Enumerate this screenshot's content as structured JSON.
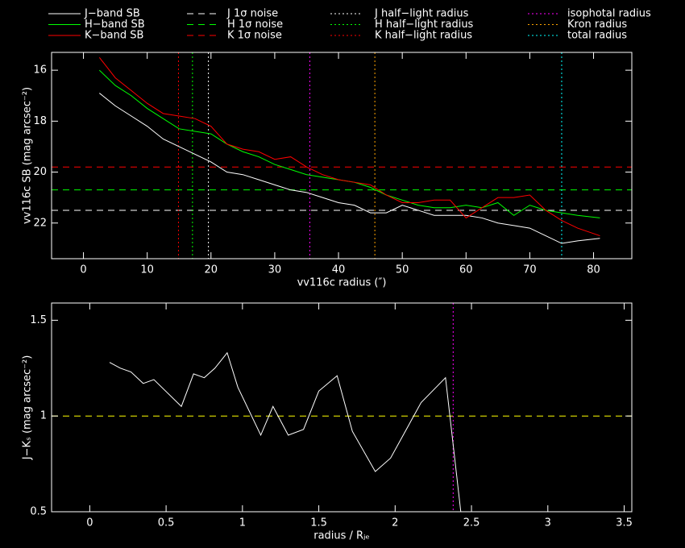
{
  "chart_data": [
    {
      "type": "line",
      "x_label": "vv116c radius (″)",
      "y_label": "vv116c SB (mag arcsec⁻²)",
      "xlim": [
        -5,
        86
      ],
      "ylim": [
        23.4,
        15.3
      ],
      "xticks": [
        0,
        10,
        20,
        30,
        40,
        50,
        60,
        70,
        80
      ],
      "yticks": [
        16,
        18,
        20,
        22
      ],
      "x": [
        2.5,
        5,
        7.5,
        10,
        12.5,
        15,
        17.5,
        20,
        22.5,
        25,
        27.5,
        30,
        32.5,
        35,
        37.5,
        40,
        42.5,
        45,
        47.5,
        50,
        52.5,
        55,
        57.5,
        60,
        62.5,
        65,
        67.5,
        70,
        72.5,
        75,
        77.5,
        81
      ],
      "series": [
        {
          "name": "J−band SB",
          "color": "#ffffff",
          "style": "solid",
          "values": [
            16.9,
            17.4,
            17.8,
            18.2,
            18.7,
            19.0,
            19.3,
            19.6,
            20.0,
            20.1,
            20.3,
            20.5,
            20.7,
            20.8,
            21.0,
            21.2,
            21.3,
            21.6,
            21.6,
            21.3,
            21.5,
            21.7,
            21.7,
            21.7,
            21.8,
            22.0,
            22.1,
            22.2,
            22.5,
            22.8,
            22.7,
            22.6
          ]
        },
        {
          "name": "H−band SB",
          "color": "#00ff00",
          "style": "solid",
          "values": [
            16.0,
            16.6,
            17.0,
            17.5,
            17.9,
            18.3,
            18.4,
            18.5,
            18.9,
            19.2,
            19.4,
            19.7,
            19.9,
            20.1,
            20.2,
            20.3,
            20.4,
            20.6,
            20.9,
            21.1,
            21.3,
            21.4,
            21.4,
            21.3,
            21.4,
            21.2,
            21.7,
            21.3,
            21.5,
            21.6,
            21.7,
            21.8
          ]
        },
        {
          "name": "K−band SB",
          "color": "#ff0000",
          "style": "solid",
          "values": [
            15.5,
            16.3,
            16.8,
            17.3,
            17.7,
            17.8,
            17.9,
            18.2,
            18.9,
            19.1,
            19.2,
            19.5,
            19.4,
            19.8,
            20.1,
            20.3,
            20.4,
            20.5,
            20.9,
            21.2,
            21.2,
            21.1,
            21.1,
            21.8,
            21.4,
            21.0,
            21.0,
            20.9,
            21.5,
            21.9,
            22.2,
            22.5
          ]
        }
      ],
      "reference_lines": [
        {
          "name": "J 1σ noise",
          "color": "#ffffff",
          "style": "dashed",
          "orientation": "h",
          "value": 21.5
        },
        {
          "name": "H 1σ noise",
          "color": "#00ff00",
          "style": "dashed",
          "orientation": "h",
          "value": 20.7
        },
        {
          "name": "K 1σ noise",
          "color": "#ff0000",
          "style": "dashed",
          "orientation": "h",
          "value": 19.8
        },
        {
          "name": "J half−light radius",
          "color": "#ffffff",
          "style": "dotted",
          "orientation": "v",
          "value": 19.6
        },
        {
          "name": "H half−light radius",
          "color": "#00ff00",
          "style": "dotted",
          "orientation": "v",
          "value": 17.1
        },
        {
          "name": "K half−light radius",
          "color": "#ff0000",
          "style": "dotted",
          "orientation": "v",
          "value": 14.9
        },
        {
          "name": "isophotal radius",
          "color": "#ff00ff",
          "style": "dotted",
          "orientation": "v",
          "value": 35.5
        },
        {
          "name": "Kron radius",
          "color": "#ffa500",
          "style": "dotted",
          "orientation": "v",
          "value": 45.7
        },
        {
          "name": "total radius",
          "color": "#00ffff",
          "style": "dotted",
          "orientation": "v",
          "value": 75.0
        }
      ]
    },
    {
      "type": "line",
      "x_label": "radius / Rⱼₑ",
      "y_label": "J−Kₛ (mag arcsec⁻²)",
      "xlim": [
        -0.25,
        3.55
      ],
      "ylim": [
        0.5,
        1.59
      ],
      "xticks": [
        0,
        0.5,
        1,
        1.5,
        2,
        2.5,
        3,
        3.5
      ],
      "yticks": [
        0.5,
        1,
        1.5
      ],
      "x": [
        0.13,
        0.2,
        0.27,
        0.35,
        0.42,
        0.6,
        0.68,
        0.75,
        0.82,
        0.9,
        0.97,
        1.12,
        1.2,
        1.3,
        1.4,
        1.5,
        1.62,
        1.72,
        1.87,
        1.97,
        2.17,
        2.33,
        2.43
      ],
      "series": [
        {
          "color": "#ffffff",
          "style": "solid",
          "values": [
            1.28,
            1.25,
            1.23,
            1.17,
            1.19,
            1.05,
            1.22,
            1.2,
            1.25,
            1.33,
            1.15,
            0.9,
            1.05,
            0.9,
            0.93,
            1.13,
            1.21,
            0.92,
            0.71,
            0.78,
            1.07,
            1.2,
            0.5
          ]
        }
      ],
      "reference_lines": [
        {
          "color": "#ffff00",
          "style": "dashed",
          "orientation": "h",
          "value": 1
        },
        {
          "color": "#ff00ff",
          "style": "dotted",
          "orientation": "v",
          "value": 2.38
        }
      ]
    }
  ]
}
